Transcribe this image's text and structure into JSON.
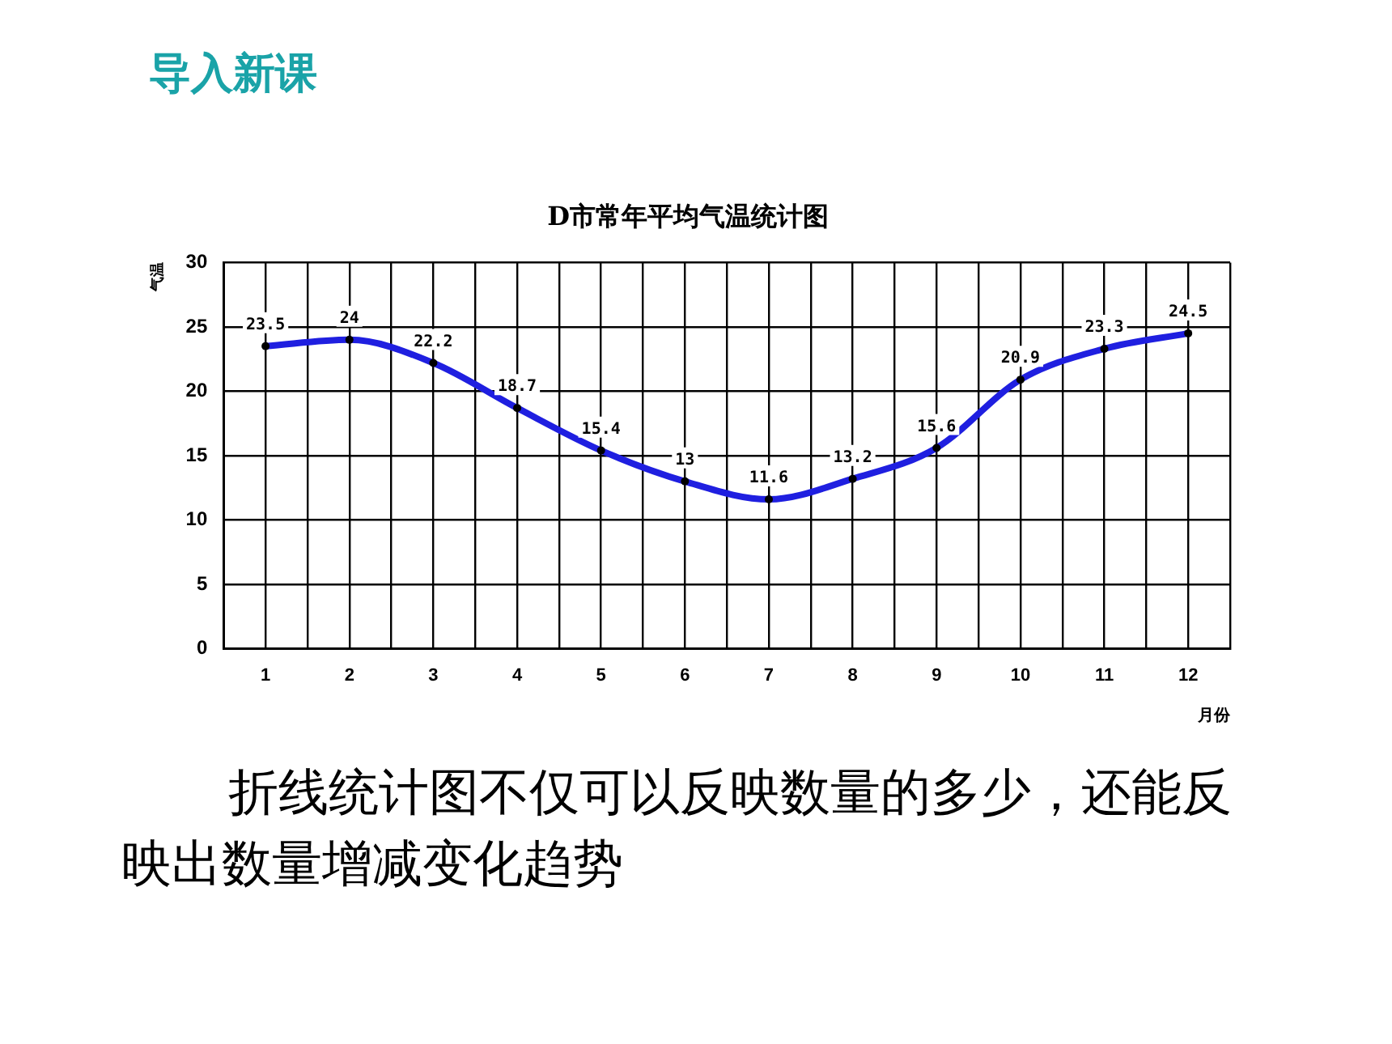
{
  "chart_data": {
    "type": "line",
    "title": "D市常年平均气温统计图",
    "xlabel": "月份",
    "ylabel": "气温",
    "annotations": [
      "导入新课",
      "折线统计图不仅可以反映数量的多少，还能反映出数量增减变化趋势"
    ],
    "x": [
      1,
      2,
      3,
      4,
      5,
      6,
      7,
      8,
      9,
      10,
      11,
      12
    ],
    "series": [
      {
        "color": "#1f1fe0",
        "values": [
          23.5,
          24,
          22.2,
          18.7,
          15.4,
          13,
          11.6,
          13.2,
          15.6,
          20.9,
          23.3,
          24.5
        ]
      }
    ],
    "xlim": [
      0.5,
      12.5
    ],
    "xticks": [
      {
        "value": 0.5,
        "label": null
      },
      1,
      {
        "value": 1.5,
        "label": null
      },
      2,
      {
        "value": 2.5,
        "label": null
      },
      3,
      {
        "value": 3.5,
        "label": null
      },
      4,
      {
        "value": 4.5,
        "label": null
      },
      5,
      {
        "value": 5.5,
        "label": null
      },
      6,
      {
        "value": 6.5,
        "label": null
      },
      7,
      {
        "value": 7.5,
        "label": null
      },
      8,
      {
        "value": 8.5,
        "label": null
      },
      9,
      {
        "value": 9.5,
        "label": null
      },
      10,
      {
        "value": 10.5,
        "label": null
      },
      11,
      {
        "value": 11.5,
        "label": null
      },
      12,
      {
        "value": 12.5,
        "label": null
      }
    ],
    "ylim": [
      0,
      30
    ],
    "yticks": [
      0,
      5,
      10,
      15,
      20,
      25,
      30
    ],
    "grid": true,
    "data_labels": true,
    "marker": "circle",
    "line_style": "solid"
  }
}
